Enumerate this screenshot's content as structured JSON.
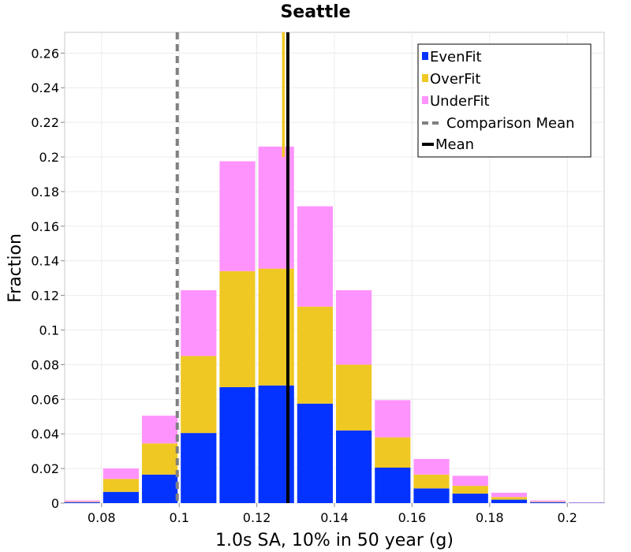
{
  "chart_data": {
    "type": "bar",
    "stacked": true,
    "title": "Seattle",
    "xlabel": "1.0s SA, 10% in 50 year (g)",
    "ylabel": "Fraction",
    "xlim": [
      0.0705,
      0.2095
    ],
    "ylim": [
      0,
      0.272
    ],
    "bin_width": 0.01,
    "bin_centers": [
      0.075,
      0.085,
      0.095,
      0.105,
      0.115,
      0.125,
      0.135,
      0.145,
      0.155,
      0.165,
      0.175,
      0.185,
      0.195,
      0.205
    ],
    "series": [
      {
        "name": "EvenFit",
        "color": "#0433ff",
        "values": [
          0.0005,
          0.0065,
          0.0165,
          0.0405,
          0.067,
          0.068,
          0.0575,
          0.042,
          0.0205,
          0.0085,
          0.0055,
          0.002,
          0.0005,
          0.0002
        ]
      },
      {
        "name": "OverFit",
        "color": "#f0c823",
        "values": [
          0.0003,
          0.0075,
          0.018,
          0.0445,
          0.067,
          0.0675,
          0.056,
          0.038,
          0.0175,
          0.008,
          0.0045,
          0.0015,
          0.0003,
          0.0001
        ]
      },
      {
        "name": "UnderFit",
        "color": "#ff93fd",
        "values": [
          0.0007,
          0.006,
          0.016,
          0.038,
          0.0635,
          0.0705,
          0.058,
          0.043,
          0.0215,
          0.009,
          0.0058,
          0.0025,
          0.0007,
          0.0002
        ]
      }
    ],
    "lines": [
      {
        "name": "Comparison Mean",
        "x": 0.0995,
        "color": "#808080",
        "style": "dashed"
      },
      {
        "name": "Mean",
        "x": 0.128,
        "color": "#000000",
        "style": "solid"
      }
    ],
    "extra_bar": {
      "x_left": 0.1265,
      "x_right": 0.1272,
      "top": 0.272,
      "color": "#f0c823"
    },
    "xticks": [
      0.08,
      0.1,
      0.12,
      0.14,
      0.16,
      0.18,
      0.2
    ],
    "xtick_labels": [
      "0.08",
      "0.1",
      "0.12",
      "0.14",
      "0.16",
      "0.18",
      "0.2"
    ],
    "yticks": [
      0,
      0.02,
      0.04,
      0.06,
      0.08,
      0.1,
      0.12,
      0.14,
      0.16,
      0.18,
      0.2,
      0.22,
      0.24,
      0.26
    ],
    "ytick_labels": [
      "0",
      "0.02",
      "0.04",
      "0.06",
      "0.08",
      "0.1",
      "0.12",
      "0.14",
      "0.16",
      "0.18",
      "0.2",
      "0.22",
      "0.24",
      "0.26"
    ],
    "grid": true,
    "legend_position": "top-right",
    "legend": [
      "EvenFit",
      "OverFit",
      "UnderFit",
      "Comparison Mean",
      "Mean"
    ]
  }
}
